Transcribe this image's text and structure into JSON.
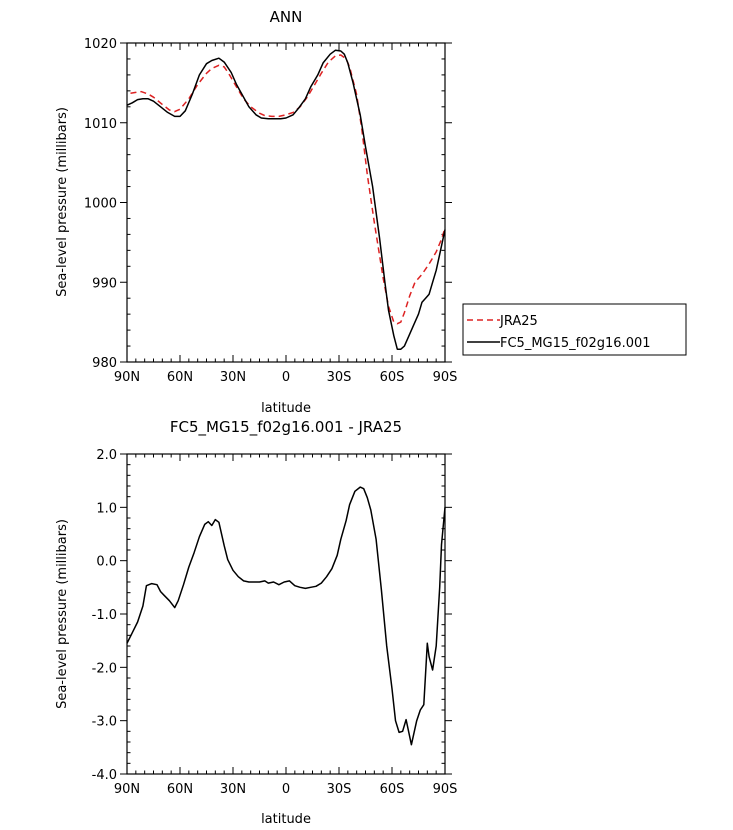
{
  "chart_data": [
    {
      "type": "line",
      "title": "ANN",
      "xlabel": "latitude",
      "ylabel": "Sea-level pressure (millibars)",
      "xlim": [
        90,
        -90
      ],
      "ylim": [
        980,
        1020
      ],
      "xticks": [
        90,
        60,
        30,
        0,
        -30,
        -60,
        -90
      ],
      "xtick_labels": [
        "90N",
        "60N",
        "30N",
        "0",
        "30S",
        "60S",
        "90S"
      ],
      "yticks": [
        980,
        990,
        1000,
        1010,
        1020
      ],
      "ytick_labels": [
        "980",
        "990",
        "1000",
        "1010",
        "1020"
      ],
      "legend_position": "right",
      "series": [
        {
          "name": "JRA25",
          "color": "#dd2222",
          "dash": "dashed",
          "x": [
            88,
            85,
            82,
            78,
            75,
            70,
            66,
            63,
            60,
            55,
            50,
            45,
            42,
            38,
            35,
            32,
            28,
            24,
            20,
            15,
            12,
            8,
            4,
            0,
            -4,
            -8,
            -12,
            -16,
            -20,
            -24,
            -28,
            -31,
            -34,
            -36,
            -40,
            -43,
            -46,
            -50,
            -55,
            -58,
            -61,
            -63,
            -65,
            -67,
            -70,
            -73,
            -77,
            -81,
            -85,
            -88,
            -90
          ],
          "y": [
            1013.7,
            1013.8,
            1013.9,
            1013.6,
            1013.2,
            1012.3,
            1011.6,
            1011.4,
            1011.7,
            1013.0,
            1014.8,
            1016.2,
            1016.8,
            1017.2,
            1017.0,
            1016.0,
            1014.5,
            1013.0,
            1012.0,
            1011.2,
            1010.9,
            1010.8,
            1010.8,
            1011.0,
            1011.3,
            1012.0,
            1013.2,
            1014.7,
            1016.2,
            1017.6,
            1018.4,
            1018.5,
            1018.0,
            1017.0,
            1013.5,
            1009.0,
            1003.5,
            997.5,
            990.5,
            987.0,
            985.0,
            984.8,
            985.0,
            986.2,
            988.3,
            990.0,
            991.0,
            992.3,
            993.8,
            995.4,
            996.8
          ]
        },
        {
          "name": "FC5_MG15_f02g16.001",
          "color": "#000000",
          "dash": "solid",
          "x": [
            90,
            87,
            84,
            81,
            78,
            75,
            71,
            67,
            63,
            60,
            57,
            53,
            49,
            45,
            42,
            38,
            35,
            31,
            28,
            24,
            21,
            17,
            14,
            10,
            7,
            3,
            0,
            -4,
            -7,
            -11,
            -14,
            -18,
            -21,
            -25,
            -28,
            -31,
            -33,
            -35,
            -38,
            -42,
            -45,
            -49,
            -53,
            -56,
            -58,
            -61,
            -63,
            -65,
            -67,
            -70,
            -72,
            -75,
            -77,
            -79,
            -81,
            -83,
            -85,
            -87,
            -90
          ],
          "y": [
            1012.2,
            1012.5,
            1012.9,
            1013.0,
            1013.0,
            1012.7,
            1012.0,
            1011.3,
            1010.8,
            1010.8,
            1011.5,
            1013.6,
            1016.0,
            1017.4,
            1017.8,
            1018.1,
            1017.6,
            1016.3,
            1014.8,
            1013.2,
            1012.0,
            1011.0,
            1010.6,
            1010.5,
            1010.5,
            1010.5,
            1010.6,
            1011.0,
            1011.8,
            1013.0,
            1014.5,
            1016.0,
            1017.5,
            1018.6,
            1019.1,
            1019.0,
            1018.6,
            1017.5,
            1015.0,
            1011.0,
            1007.0,
            1002.0,
            995.5,
            990.0,
            986.5,
            983.3,
            981.6,
            981.6,
            982.0,
            983.5,
            984.5,
            986.0,
            987.5,
            988.0,
            988.5,
            990.0,
            991.5,
            993.5,
            996.6
          ]
        }
      ]
    },
    {
      "type": "line",
      "title": "FC5_MG15_f02g16.001 - JRA25",
      "xlabel": "latitude",
      "ylabel": "Sea-level pressure (millibars)",
      "xlim": [
        90,
        -90
      ],
      "ylim": [
        -4.0,
        2.0
      ],
      "xticks": [
        90,
        60,
        30,
        0,
        -30,
        -60,
        -90
      ],
      "xtick_labels": [
        "90N",
        "60N",
        "30N",
        "0",
        "30S",
        "60S",
        "90S"
      ],
      "yticks": [
        -4,
        -3,
        -2,
        -1,
        0,
        1,
        2
      ],
      "ytick_labels": [
        "-4.0",
        "-3.0",
        "-2.0",
        "-1.0",
        "0.0",
        "1.0",
        "2.0"
      ],
      "series": [
        {
          "color": "#000000",
          "dash": "solid",
          "x": [
            90,
            87,
            84,
            81,
            79,
            76,
            73,
            71,
            69,
            66,
            63,
            61,
            58,
            55,
            52,
            49,
            46,
            44,
            42,
            40,
            38,
            35,
            33,
            30,
            27,
            24,
            21,
            18,
            15,
            12,
            10,
            7,
            4,
            1,
            -2,
            -5,
            -8,
            -11,
            -14,
            -17,
            -20,
            -23,
            -26,
            -29,
            -31,
            -34,
            -36,
            -39,
            -42,
            -44,
            -46,
            -48,
            -51,
            -54,
            -57,
            -60,
            -62,
            -64,
            -66,
            -68,
            -71,
            -74,
            -76,
            -78,
            -80,
            -81,
            -83,
            -85,
            -87,
            -88,
            -90
          ],
          "y": [
            -1.55,
            -1.35,
            -1.15,
            -0.85,
            -0.47,
            -0.43,
            -0.45,
            -0.58,
            -0.65,
            -0.75,
            -0.88,
            -0.75,
            -0.45,
            -0.12,
            0.15,
            0.45,
            0.68,
            0.73,
            0.66,
            0.77,
            0.72,
            0.28,
            0.02,
            -0.18,
            -0.3,
            -0.38,
            -0.4,
            -0.4,
            -0.4,
            -0.38,
            -0.42,
            -0.4,
            -0.45,
            -0.4,
            -0.38,
            -0.47,
            -0.5,
            -0.52,
            -0.5,
            -0.48,
            -0.42,
            -0.3,
            -0.15,
            0.1,
            0.4,
            0.75,
            1.05,
            1.3,
            1.38,
            1.35,
            1.18,
            0.95,
            0.4,
            -0.55,
            -1.6,
            -2.4,
            -3.0,
            -3.22,
            -3.2,
            -2.98,
            -3.45,
            -3.0,
            -2.8,
            -2.7,
            -1.55,
            -1.8,
            -2.05,
            -1.6,
            -0.5,
            0.3,
            1.0
          ]
        }
      ]
    }
  ]
}
